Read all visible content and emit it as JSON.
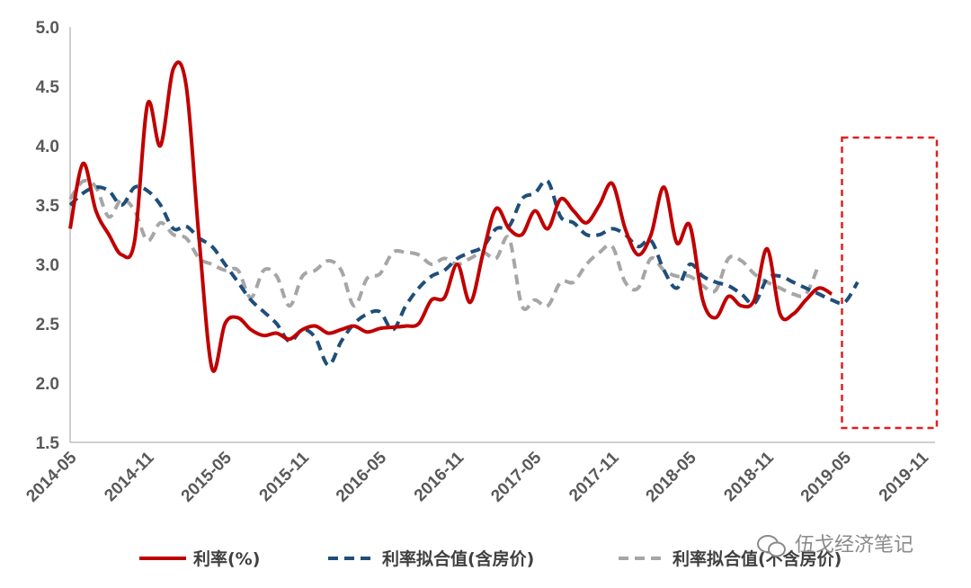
{
  "chart_data": {
    "type": "line",
    "ylim": [
      1.5,
      5.0
    ],
    "yticks": [
      "1.5",
      "2.0",
      "2.5",
      "3.0",
      "3.5",
      "4.0",
      "4.5",
      "5.0"
    ],
    "xticks": [
      "2014-05",
      "2014-11",
      "2015-05",
      "2015-11",
      "2016-05",
      "2016-11",
      "2017-05",
      "2017-11",
      "2018-05",
      "2018-11",
      "2019-05",
      "2019-11"
    ],
    "x_start": "2014-05",
    "x_end": "2019-12",
    "grid": false,
    "legend_position": "bottom",
    "highlight_box": {
      "from": "2019-05",
      "to": "2019-12",
      "color": "#e02020"
    },
    "series": [
      {
        "name": "利率(%)",
        "color": "#c00000",
        "style": "solid",
        "values": [
          3.3,
          3.85,
          3.45,
          3.25,
          3.08,
          3.2,
          4.35,
          4.0,
          4.65,
          4.5,
          3.2,
          2.12,
          2.5,
          2.55,
          2.45,
          2.4,
          2.42,
          2.37,
          2.45,
          2.48,
          2.42,
          2.45,
          2.48,
          2.43,
          2.46,
          2.47,
          2.48,
          2.5,
          2.7,
          2.72,
          3.0,
          2.68,
          3.1,
          3.47,
          3.3,
          3.25,
          3.45,
          3.3,
          3.55,
          3.45,
          3.35,
          3.5,
          3.68,
          3.3,
          3.08,
          3.25,
          3.65,
          3.18,
          3.33,
          2.7,
          2.55,
          2.73,
          2.65,
          2.7,
          3.13,
          2.58,
          2.58,
          2.7,
          2.8,
          2.75
        ]
      },
      {
        "name": "利率拟合值(含房价)",
        "color": "#1f4e79",
        "style": "dashed",
        "values": [
          3.5,
          3.6,
          3.65,
          3.62,
          3.5,
          3.65,
          3.62,
          3.5,
          3.3,
          3.32,
          3.22,
          3.15,
          3.0,
          2.85,
          2.7,
          2.6,
          2.5,
          2.35,
          2.45,
          2.38,
          2.15,
          2.35,
          2.5,
          2.58,
          2.6,
          2.45,
          2.65,
          2.8,
          2.9,
          2.95,
          3.05,
          3.1,
          3.15,
          3.3,
          3.32,
          3.55,
          3.6,
          3.7,
          3.4,
          3.35,
          3.25,
          3.25,
          3.3,
          3.25,
          3.15,
          3.2,
          2.95,
          2.8,
          3.0,
          2.9,
          2.85,
          2.82,
          2.75,
          2.67,
          2.88,
          2.9,
          2.85,
          2.8,
          2.75,
          2.7,
          2.68,
          2.85
        ]
      },
      {
        "name": "利率拟合值(不含房价)",
        "color": "#a6a6a6",
        "style": "dashed",
        "values": [
          3.55,
          3.7,
          3.65,
          3.4,
          3.55,
          3.45,
          3.2,
          3.35,
          3.25,
          3.22,
          3.05,
          3.0,
          2.95,
          2.95,
          2.72,
          2.95,
          2.9,
          2.65,
          2.9,
          2.95,
          3.03,
          2.95,
          2.65,
          2.88,
          2.92,
          3.1,
          3.1,
          3.08,
          3.0,
          3.05,
          3.0,
          3.05,
          3.1,
          3.05,
          3.22,
          2.65,
          2.7,
          2.65,
          2.85,
          2.85,
          3.0,
          3.1,
          3.15,
          2.85,
          2.8,
          3.05,
          2.95,
          2.9,
          2.9,
          2.82,
          2.78,
          3.05,
          3.03,
          2.92,
          2.85,
          2.8,
          2.75,
          2.75,
          3.0
        ]
      }
    ]
  },
  "watermark": "伍戈经济笔记"
}
